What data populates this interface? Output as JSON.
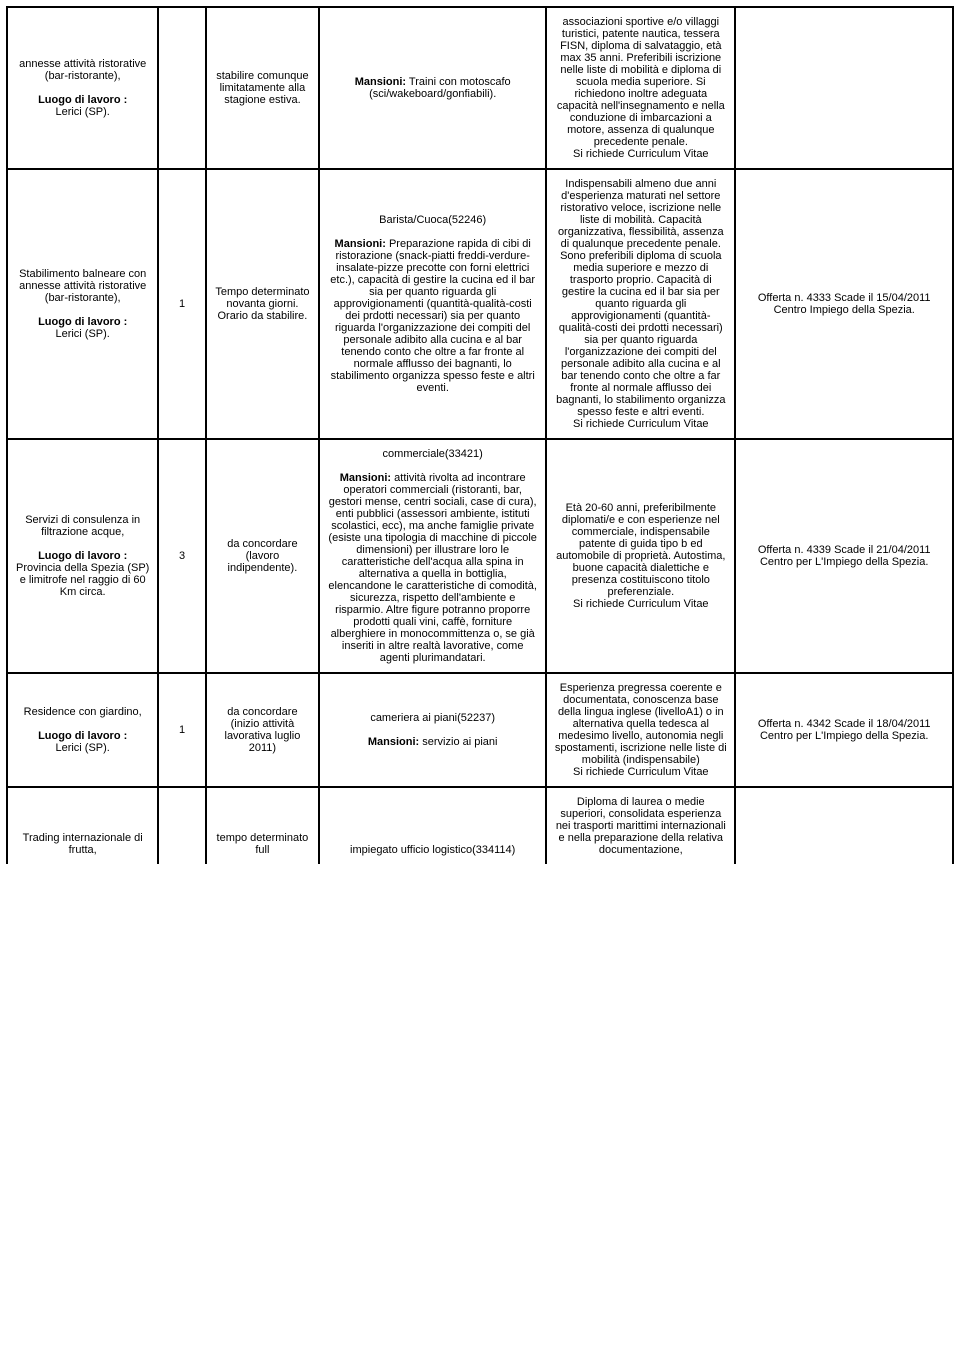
{
  "rows": [
    {
      "c1_a": "annesse attività ristorative (bar-ristorante),",
      "c1_luogo_label": "Luogo di lavoro :",
      "c1_luogo_val": "Lerici (SP).",
      "c2": "",
      "c3": "stabilire comunque limitatamente alla stagione estiva.",
      "c4_label": "Mansioni:",
      "c4_text": " Traini con motoscafo (sci/wakeboard/gonfiabili).",
      "c5": "associazioni sportive e/o villaggi turistici, patente nautica, tessera FISN, diploma di salvataggio, età max 35 anni. Preferibili iscrizione nelle liste di mobilità e diploma di scuola media superiore. Si richiedono inoltre adeguata capacità nell'insegnamento e nella conduzione di imbarcazioni a motore, assenza di qualunque precedente penale.",
      "c5_cv": "Si richiede Curriculum Vitae",
      "c6": ""
    },
    {
      "c1_a": "Stabilimento balneare con annesse attività ristorative (bar-ristorante),",
      "c1_luogo_label": "Luogo di lavoro :",
      "c1_luogo_val": "Lerici (SP).",
      "c2": "1",
      "c3": "Tempo determinato novanta giorni. Orario da stabilire.",
      "c4_title": "Barista/Cuoca(52246)",
      "c4_label": "Mansioni:",
      "c4_text": " Preparazione rapida di cibi di ristorazione (snack-piatti freddi-verdure-insalate-pizze precotte con forni elettrici etc.), capacità di gestire la cucina ed il bar sia per quanto riguarda gli approvigionamenti (quantità-qualità-costi dei prdotti necessari) sia per quanto riguarda l'organizzazione dei compiti del personale adibito alla cucina e al bar tenendo conto che oltre a far fronte al normale afflusso dei bagnanti, lo stabilimento organizza spesso feste e altri eventi.",
      "c5": "Indispensabili almeno due anni d'esperienza maturati nel settore ristorativo veloce, iscrizione nelle liste di mobilità. Capacità organizzativa, flessibilità, assenza di qualunque precedente penale. Sono preferibili diploma di scuola media superiore e mezzo di trasporto proprio. Capacità di gestire la cucina ed il bar sia per quanto riguarda gli approvigionamenti (quantità-qualità-costi dei prdotti necessari) sia per quanto riguarda l'organizzazione dei compiti del personale adibito alla cucina e al bar tenendo conto che oltre a far fronte al normale afflusso dei bagnanti, lo stabilimento organizza spesso feste e altri eventi.",
      "c5_cv": "Si richiede Curriculum Vitae",
      "c6_a": "Offerta n. 4333  Scade il 15/04/2011",
      "c6_b": "Centro Impiego della Spezia."
    },
    {
      "c1_a": "Servizi di consulenza in filtrazione acque,",
      "c1_luogo_label": "Luogo di lavoro :",
      "c1_luogo_val": "Provincia della Spezia (SP) e limitrofe nel raggio di 60 Km circa.",
      "c2": "3",
      "c3": "da concordare (lavoro indipendente).",
      "c4_title": "commerciale(33421)",
      "c4_label": "Mansioni:",
      "c4_text": " attività rivolta ad incontrare operatori commerciali (ristoranti, bar, gestori mense, centri sociali, case di cura), enti pubblici (assessori ambiente, istituti scolastici, ecc), ma anche famiglie private (esiste una tipologia di macchine di piccole dimensioni) per illustrare loro le caratteristiche dell'acqua alla spina in alternativa a quella in bottiglia, elencandone le caratteristiche di comodità, sicurezza, rispetto dell'ambiente e risparmio. Altre figure potranno proporre prodotti quali vini, caffè, forniture alberghiere in monocommittenza o, se già inseriti in altre realtà lavorative, come agenti plurimandatari.",
      "c5": "Età 20-60 anni, preferibilmente diplomati/e e con esperienze nel commerciale, indispensabile patente di guida tipo b ed automobile di proprietà. Autostima, buone capacità dialettiche e presenza costituiscono titolo preferenziale.",
      "c5_cv": "Si richiede Curriculum Vitae",
      "c6_a": "Offerta n. 4339  Scade il 21/04/2011",
      "c6_b": "Centro per L'Impiego della Spezia."
    },
    {
      "c1_a": "Residence con giardino,",
      "c1_luogo_label": "Luogo di lavoro :",
      "c1_luogo_val": "Lerici (SP).",
      "c2": "1",
      "c3": "da concordare (inizio attività lavorativa luglio 2011)",
      "c4_title": "cameriera ai piani(52237)",
      "c4_label": "Mansioni:",
      "c4_text": " servizio ai piani",
      "c5": "Esperienza pregressa coerente e documentata, conoscenza base della lingua inglese (livelloA1) o in alternativa quella tedesca al medesimo livello, autonomia negli spostamenti, iscrizione nelle liste di mobilità (indispensabile)",
      "c5_cv": "Si richiede Curriculum Vitae",
      "c6_a": "Offerta n. 4342  Scade il 18/04/2011",
      "c6_b": "Centro per L'Impiego della Spezia."
    },
    {
      "c1_a": "Trading internazionale di frutta,",
      "c2": "",
      "c3": "tempo determinato full",
      "c4_title": "impiegato ufficio logistico(334114)",
      "c5": "Diploma di laurea o medie superiori, consolidata esperienza nei trasporti marittimi internazionali e nella preparazione della relativa documentazione,",
      "c6": ""
    }
  ]
}
